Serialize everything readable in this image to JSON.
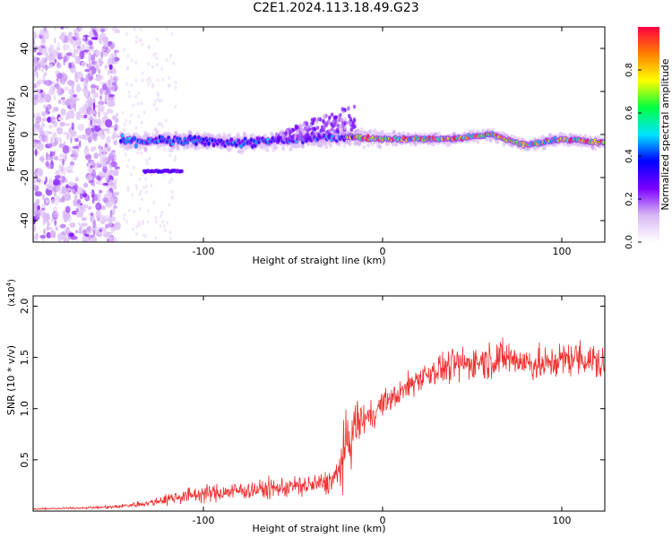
{
  "title": "C2E1.2024.113.18.49.G23",
  "chart_data": [
    {
      "type": "heatmap",
      "xlabel": "Height of straight line (km)",
      "ylabel": "Frequency (Hz)",
      "xlim": [
        -195,
        124
      ],
      "ylim": [
        -50,
        50
      ],
      "xticks": [
        -100,
        0,
        100
      ],
      "yticks": [
        -40,
        -20,
        0,
        20,
        40
      ],
      "colorbar": {
        "label": "Normalized spectral amplitude",
        "range": [
          0,
          1
        ],
        "ticks": [
          0.0,
          0.2,
          0.4,
          0.6,
          0.8
        ],
        "colormap": [
          "#ffffff",
          "#d9b8f5",
          "#7b00ff",
          "#0000ff",
          "#00e5ff",
          "#00ff40",
          "#ffff00",
          "#ff8000",
          "#ff0040"
        ]
      },
      "ridge": {
        "x": [
          -145,
          -120,
          -100,
          -80,
          -60,
          -40,
          -20,
          0,
          20,
          40,
          60,
          80,
          100,
          124
        ],
        "freq": [
          -3,
          -3,
          -3,
          -4,
          -3,
          -2,
          -1,
          -2,
          -2,
          -2,
          0,
          -5,
          -2,
          -4
        ]
      },
      "noise_region_x": [
        -195,
        -148
      ]
    },
    {
      "type": "line",
      "xlabel": "Height of straight line (km)",
      "ylabel": "SNR (10 * v/v)",
      "scale_label": "(x10",
      "scale_exp": "4",
      "scale_close": ")",
      "xlim": [
        -195,
        124
      ],
      "ylim": [
        0,
        2.1
      ],
      "xticks": [
        -100,
        0,
        100
      ],
      "yticks": [
        0.5,
        1.0,
        1.5,
        2.0
      ],
      "ytick_labels": [
        "0.5",
        "1.0",
        "1.5",
        "2.0"
      ],
      "color": "#f03030",
      "series": [
        {
          "x": [
            -195,
            -170,
            -150,
            -140,
            -130,
            -120,
            -110,
            -100,
            -90,
            -80,
            -70,
            -60,
            -50,
            -40,
            -30,
            -25,
            -22,
            -18,
            -15,
            -10,
            -5,
            0,
            10,
            20,
            30,
            40,
            50,
            60,
            70,
            80,
            90,
            100,
            110,
            120,
            124
          ],
          "mean": [
            0.02,
            0.03,
            0.04,
            0.06,
            0.08,
            0.12,
            0.15,
            0.17,
            0.18,
            0.2,
            0.21,
            0.22,
            0.24,
            0.25,
            0.28,
            0.35,
            0.55,
            0.7,
            0.85,
            0.9,
            0.95,
            1.05,
            1.15,
            1.3,
            1.38,
            1.42,
            1.45,
            1.48,
            1.5,
            1.45,
            1.42,
            1.48,
            1.5,
            1.45,
            1.4
          ],
          "spread": [
            0.01,
            0.01,
            0.02,
            0.03,
            0.04,
            0.07,
            0.09,
            0.1,
            0.1,
            0.11,
            0.11,
            0.12,
            0.12,
            0.13,
            0.14,
            0.18,
            0.35,
            0.35,
            0.3,
            0.2,
            0.15,
            0.15,
            0.15,
            0.17,
            0.18,
            0.2,
            0.2,
            0.22,
            0.22,
            0.2,
            0.2,
            0.2,
            0.2,
            0.22,
            0.2
          ]
        }
      ]
    }
  ]
}
